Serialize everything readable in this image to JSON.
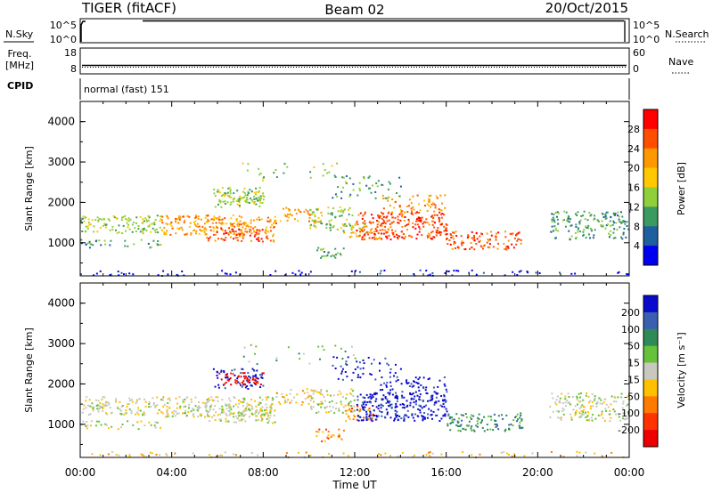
{
  "header": {
    "station": "TIGER (fitACF)",
    "beam": "Beam 02",
    "date": "20/Oct/2015"
  },
  "strip_panels": {
    "nsky": {
      "label": "N.Sky",
      "ticks": [
        "10^5",
        "10^0"
      ],
      "right_ticks": [
        "10^5",
        "10^0"
      ],
      "right_label": "N.Search"
    },
    "freq": {
      "label_line1": "Freq.",
      "label_line2": "[MHz]",
      "ticks": [
        "18",
        "8"
      ],
      "right_ticks": [
        "60",
        "0"
      ],
      "right_label": "Nave"
    },
    "cpid": {
      "label": "CPID",
      "mode": "normal (fast) 151"
    }
  },
  "chart_data": [
    {
      "type": "heatmap",
      "name": "power-panel",
      "ylabel": "Slant Range [km]",
      "ylim": [
        180,
        4500
      ],
      "yticks": [
        "4000",
        "3000",
        "2000",
        "1000"
      ],
      "xlabel": "Time UT",
      "xlim_hours": [
        0,
        24
      ],
      "xticks": [
        "00:00",
        "04:00",
        "08:00",
        "12:00",
        "16:00",
        "20:00",
        "00:00"
      ],
      "colorbar": {
        "label": "Power [dB]",
        "ticks": [
          "28",
          "24",
          "20",
          "16",
          "12",
          "8",
          "4"
        ],
        "colors": [
          "#ff0000",
          "#ff4e00",
          "#ff9800",
          "#ffc800",
          "#8fcf3a",
          "#3a9a5f",
          "#1f5f9f",
          "#0000ee"
        ]
      }
    },
    {
      "type": "heatmap",
      "name": "velocity-panel",
      "ylabel": "Slant Range [km]",
      "ylim": [
        180,
        4500
      ],
      "yticks": [
        "4000",
        "3000",
        "2000",
        "1000"
      ],
      "xlabel": "Time UT",
      "xlim_hours": [
        0,
        24
      ],
      "xticks": [
        "00:00",
        "04:00",
        "08:00",
        "12:00",
        "16:00",
        "20:00",
        "00:00"
      ],
      "colorbar": {
        "label": "Velocity [m s⁻¹]",
        "ticks": [
          "200",
          "100",
          "50",
          "15",
          "-15",
          "-50",
          "-100",
          "-200"
        ],
        "colors": [
          "#0a0acc",
          "#3a5fb0",
          "#2e8b57",
          "#66c23a",
          "#c8c8c0",
          "#ffc000",
          "#ff7a00",
          "#ff3200",
          "#ee0000"
        ]
      }
    }
  ]
}
